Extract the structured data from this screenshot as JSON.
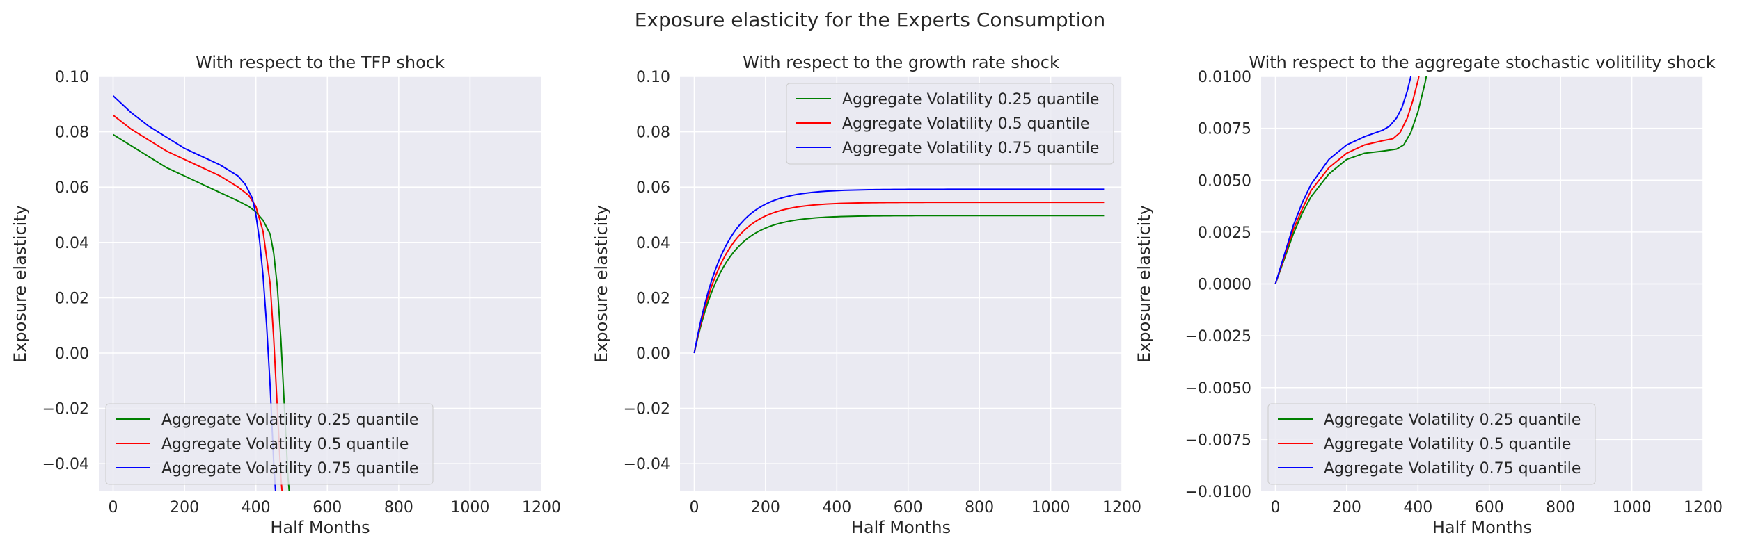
{
  "figure_title": "Exposure elasticity for the Experts Consumption",
  "chart_data": [
    {
      "type": "line",
      "title": "With respect to the TFP shock",
      "xlabel": "Half Months",
      "ylabel": "Exposure elasticity",
      "xlim": [
        -40,
        1200
      ],
      "ylim": [
        -0.05,
        0.1
      ],
      "xticks": [
        0,
        200,
        400,
        600,
        800,
        1000,
        1200
      ],
      "yticks": [
        -0.04,
        -0.02,
        0.0,
        0.02,
        0.04,
        0.06,
        0.08,
        0.1
      ],
      "ytick_labels": [
        "−0.04",
        "−0.02",
        "0.00",
        "0.02",
        "0.04",
        "0.06",
        "0.08",
        "0.10"
      ],
      "grid": true,
      "legend_position": "lower-left",
      "series": [
        {
          "name": "Aggregate Volatility 0.25 quantile",
          "color": "#008000",
          "x": [
            0,
            50,
            100,
            150,
            200,
            250,
            300,
            350,
            380,
            400,
            420,
            440,
            450,
            460,
            470,
            480,
            490,
            500
          ],
          "y": [
            0.079,
            0.075,
            0.071,
            0.067,
            0.064,
            0.061,
            0.058,
            0.055,
            0.053,
            0.051,
            0.048,
            0.043,
            0.036,
            0.024,
            0.005,
            -0.02,
            -0.045,
            -0.06
          ]
        },
        {
          "name": "Aggregate Volatility 0.5 quantile",
          "color": "#ff0000",
          "x": [
            0,
            50,
            100,
            150,
            200,
            250,
            300,
            350,
            380,
            400,
            420,
            440,
            450,
            460,
            470,
            480
          ],
          "y": [
            0.086,
            0.081,
            0.077,
            0.073,
            0.07,
            0.067,
            0.064,
            0.06,
            0.057,
            0.053,
            0.044,
            0.025,
            0.005,
            -0.02,
            -0.045,
            -0.06
          ]
        },
        {
          "name": "Aggregate Volatility 0.75 quantile",
          "color": "#0000ff",
          "x": [
            0,
            50,
            100,
            150,
            200,
            250,
            300,
            350,
            370,
            390,
            400,
            410,
            420,
            430,
            440,
            450,
            460
          ],
          "y": [
            0.093,
            0.087,
            0.082,
            0.078,
            0.074,
            0.071,
            0.068,
            0.064,
            0.061,
            0.056,
            0.05,
            0.041,
            0.028,
            0.01,
            -0.012,
            -0.04,
            -0.06
          ]
        }
      ]
    },
    {
      "type": "line",
      "title": "With respect to the growth rate shock",
      "xlabel": "Half Months",
      "ylabel": "Exposure elasticity",
      "xlim": [
        -40,
        1200
      ],
      "ylim": [
        -0.05,
        0.1
      ],
      "xticks": [
        0,
        200,
        400,
        600,
        800,
        1000,
        1200
      ],
      "yticks": [
        -0.04,
        -0.02,
        0.0,
        0.02,
        0.04,
        0.06,
        0.08,
        0.1
      ],
      "ytick_labels": [
        "−0.04",
        "−0.02",
        "0.00",
        "0.02",
        "0.04",
        "0.06",
        "0.08",
        "0.10"
      ],
      "grid": true,
      "legend_position": "upper-right",
      "series": [
        {
          "name": "Aggregate Volatility 0.25 quantile",
          "color": "#008000",
          "asymptote": 0.0497,
          "rate": 0.012,
          "xmax": 1150
        },
        {
          "name": "Aggregate Volatility 0.5 quantile",
          "color": "#ff0000",
          "asymptote": 0.0545,
          "rate": 0.012,
          "xmax": 1150
        },
        {
          "name": "Aggregate Volatility 0.75 quantile",
          "color": "#0000ff",
          "asymptote": 0.0592,
          "rate": 0.012,
          "xmax": 1150
        }
      ]
    },
    {
      "type": "line",
      "title": "With respect to the aggregate stochastic volitility shock",
      "xlabel": "Half Months",
      "ylabel": "Exposure elasticity",
      "xlim": [
        -40,
        1200
      ],
      "ylim": [
        -0.01,
        0.01
      ],
      "xticks": [
        0,
        200,
        400,
        600,
        800,
        1000,
        1200
      ],
      "yticks": [
        -0.01,
        -0.0075,
        -0.005,
        -0.0025,
        0.0,
        0.0025,
        0.005,
        0.0075,
        0.01
      ],
      "ytick_labels": [
        "−0.0100",
        "−0.0075",
        "−0.0050",
        "−0.0025",
        "0.0000",
        "0.0025",
        "0.0050",
        "0.0075",
        "0.0100"
      ],
      "grid": true,
      "legend_position": "lower-left",
      "series": [
        {
          "name": "Aggregate Volatility 0.25 quantile",
          "color": "#008000",
          "x": [
            0,
            25,
            50,
            75,
            100,
            150,
            200,
            250,
            300,
            340,
            360,
            380,
            400,
            410,
            420,
            430,
            440
          ],
          "y": [
            0.0,
            0.0012,
            0.0024,
            0.0034,
            0.0042,
            0.0053,
            0.006,
            0.0063,
            0.0064,
            0.0065,
            0.0067,
            0.0073,
            0.0083,
            0.009,
            0.0097,
            0.0106,
            0.0115
          ]
        },
        {
          "name": "Aggregate Volatility 0.5 quantile",
          "color": "#ff0000",
          "x": [
            0,
            25,
            50,
            75,
            100,
            150,
            200,
            250,
            300,
            330,
            350,
            370,
            385,
            400,
            410,
            420
          ],
          "y": [
            0.0,
            0.0013,
            0.0026,
            0.0036,
            0.0045,
            0.0056,
            0.0063,
            0.0067,
            0.0069,
            0.007,
            0.0073,
            0.008,
            0.0088,
            0.0098,
            0.0106,
            0.0115
          ]
        },
        {
          "name": "Aggregate Volatility 0.75 quantile",
          "color": "#0000ff",
          "x": [
            0,
            25,
            50,
            75,
            100,
            150,
            200,
            250,
            300,
            320,
            340,
            355,
            370,
            380,
            390,
            400
          ],
          "y": [
            0.0,
            0.0014,
            0.0028,
            0.0039,
            0.0048,
            0.006,
            0.0067,
            0.0071,
            0.0074,
            0.0076,
            0.008,
            0.0085,
            0.0093,
            0.01,
            0.0108,
            0.0118
          ]
        }
      ]
    }
  ]
}
